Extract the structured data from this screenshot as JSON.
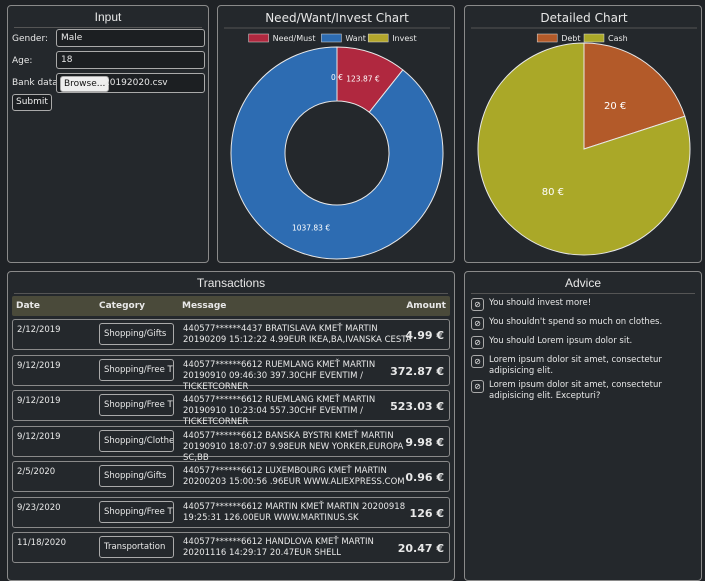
{
  "input": {
    "title": "Input",
    "gender_label": "Gender:",
    "gender": "Male",
    "age_label": "Age:",
    "age": "18",
    "bank_label": "Bank data:",
    "browse": "Browse...",
    "file": "20192020.csv",
    "submit": "Submit"
  },
  "chart_data": [
    {
      "type": "donut",
      "title": "Need/Want/Invest Chart",
      "categories": [
        "Need/Must",
        "Want",
        "Invest"
      ],
      "values": [
        123.87,
        1037.83,
        0
      ],
      "value_labels": [
        "123.87 €",
        "1037.83 €",
        "0 €"
      ],
      "colors": [
        "#b0283f",
        "#2d6cb2",
        "#b3a62c"
      ],
      "legend": "top"
    },
    {
      "type": "pie",
      "title": "Detailed Chart",
      "categories": [
        "Debt",
        "Cash"
      ],
      "values": [
        20,
        80
      ],
      "value_labels": [
        "20 €",
        "80 €"
      ],
      "colors": [
        "#b35a29",
        "#aaa828"
      ],
      "legend": "top"
    }
  ],
  "transactions": {
    "title": "Transactions",
    "columns": [
      "Date",
      "Category",
      "Message",
      "Amount"
    ],
    "rows": [
      [
        "2/12/2019",
        "Shopping/Gifts",
        "440577******4437 BRATISLAVA KMEŤ MARTIN 20190209 15:12:22 4.99EUR IKEA,BA,IVANSKA CESTA",
        "4.99 €"
      ],
      [
        "9/12/2019",
        "Shopping/Free Time",
        "440577******6612 RUEMLANG KMEŤ MARTIN 20190910 09:46:30 397.30CHF EVENTIM / TICKETCORNER",
        "372.87 €"
      ],
      [
        "9/12/2019",
        "Shopping/Free Time",
        "440577******6612 RUEMLANG KMEŤ MARTIN 20190910 10:23:04 557.30CHF EVENTIM / TICKETCORNER",
        "523.03 €"
      ],
      [
        "9/12/2019",
        "Shopping/Clothes",
        "440577******6612 BANSKA BYSTRI KMEŤ MARTIN 20190910 18:07:07 9.98EUR NEW YORKER,EUROPA SC,BB",
        "9.98 €"
      ],
      [
        "2/5/2020",
        "Shopping/Gifts",
        "440577******6612 LUXEMBOURG KMEŤ MARTIN 20200203 15:00:56 .96EUR WWW.ALIEXPRESS.COM",
        "0.96 €"
      ],
      [
        "9/23/2020",
        "Shopping/Free Time",
        "440577******6612 MARTIN KMEŤ MARTIN 20200918 19:25:31 126.00EUR WWW.MARTINUS.SK",
        "126 €"
      ],
      [
        "11/18/2020",
        "Transportation",
        "440577******6612 HANDLOVA KMEŤ MARTIN 20201116 14:29:17 20.47EUR SHELL",
        "20.47 €"
      ]
    ]
  },
  "advice": {
    "title": "Advice",
    "items": [
      "You should invest more!",
      "You shouldn't spend so much on clothes.",
      "You should Lorem ipsum dolor sit.",
      "Lorem ipsum dolor sit amet, consectetur adipisicing elit.",
      "Lorem ipsum dolor sit amet, consectetur adipisicing elit. Excepturi?"
    ]
  }
}
